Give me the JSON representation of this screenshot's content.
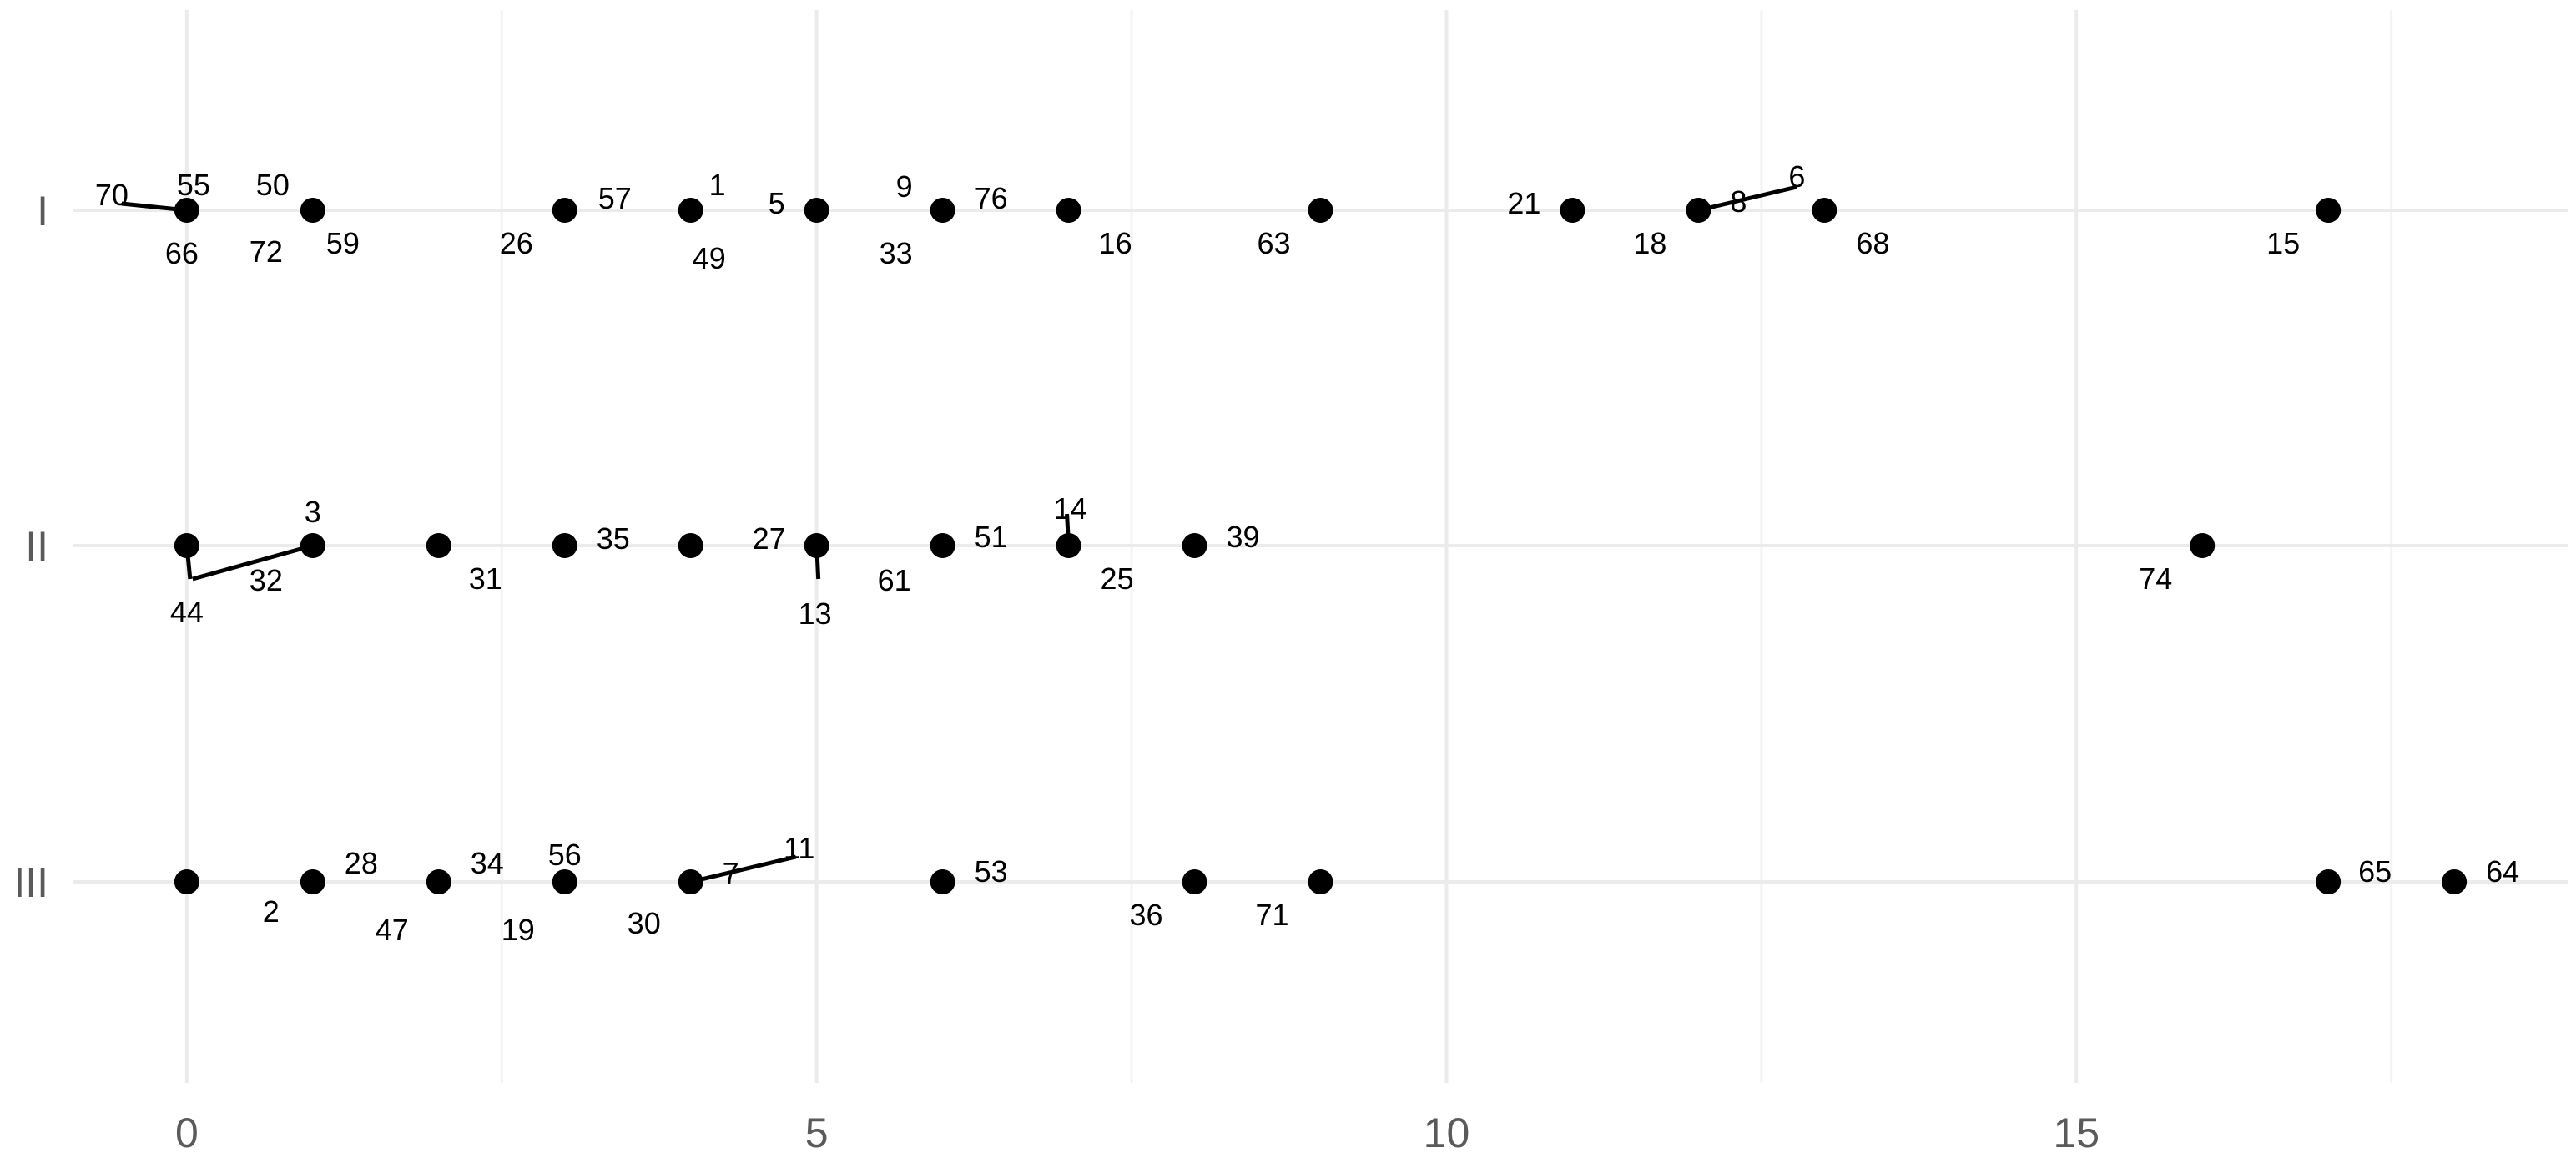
{
  "chart_data": {
    "type": "scatter",
    "title": "",
    "xlabel": "",
    "ylabel": "",
    "xlim": [
      -0.9,
      18.9
    ],
    "x_ticks": [
      0,
      5,
      10,
      15
    ],
    "x_tick_labels": [
      "0",
      "5",
      "10",
      "15"
    ],
    "categories": [
      "I",
      "II",
      "III"
    ],
    "grid": true,
    "legend": "none",
    "point_color": "#000000",
    "points": [
      {
        "cat": "I",
        "x": 0,
        "labels": [
          "70",
          "55",
          "66"
        ]
      },
      {
        "cat": "I",
        "x": 1,
        "labels": [
          "50",
          "72",
          "59"
        ]
      },
      {
        "cat": "I",
        "x": 3,
        "labels": [
          "57",
          "26"
        ]
      },
      {
        "cat": "I",
        "x": 4,
        "labels": [
          "1",
          "49"
        ]
      },
      {
        "cat": "I",
        "x": 5,
        "labels": [
          "5"
        ]
      },
      {
        "cat": "I",
        "x": 6,
        "labels": [
          "9",
          "76",
          "33"
        ]
      },
      {
        "cat": "I",
        "x": 7,
        "labels": [
          "16"
        ]
      },
      {
        "cat": "I",
        "x": 9,
        "labels": [
          "63"
        ]
      },
      {
        "cat": "I",
        "x": 11,
        "labels": [
          "21"
        ]
      },
      {
        "cat": "I",
        "x": 12,
        "labels": [
          "8",
          "6",
          "18"
        ]
      },
      {
        "cat": "I",
        "x": 13,
        "labels": [
          "68"
        ]
      },
      {
        "cat": "I",
        "x": 17,
        "labels": [
          "15"
        ]
      },
      {
        "cat": "II",
        "x": 0,
        "labels": [
          "44"
        ]
      },
      {
        "cat": "II",
        "x": 1,
        "labels": [
          "32",
          "3"
        ]
      },
      {
        "cat": "II",
        "x": 2,
        "labels": [
          "31"
        ]
      },
      {
        "cat": "II",
        "x": 3,
        "labels": [
          "35"
        ]
      },
      {
        "cat": "II",
        "x": 4,
        "labels": [
          "27"
        ]
      },
      {
        "cat": "II",
        "x": 5,
        "labels": [
          "13"
        ]
      },
      {
        "cat": "II",
        "x": 6,
        "labels": [
          "61",
          "51"
        ]
      },
      {
        "cat": "II",
        "x": 7,
        "labels": [
          "14",
          "25"
        ]
      },
      {
        "cat": "II",
        "x": 8,
        "labels": [
          "39"
        ]
      },
      {
        "cat": "II",
        "x": 16,
        "labels": [
          "74"
        ]
      },
      {
        "cat": "III",
        "x": 0,
        "labels": []
      },
      {
        "cat": "III",
        "x": 1,
        "labels": [
          "28",
          "2"
        ]
      },
      {
        "cat": "III",
        "x": 2,
        "labels": [
          "34",
          "47"
        ]
      },
      {
        "cat": "III",
        "x": 3,
        "labels": [
          "56",
          "19"
        ]
      },
      {
        "cat": "III",
        "x": 4,
        "labels": [
          "7",
          "11",
          "30"
        ]
      },
      {
        "cat": "III",
        "x": 6,
        "labels": [
          "53"
        ]
      },
      {
        "cat": "III",
        "x": 8,
        "labels": [
          "36"
        ]
      },
      {
        "cat": "III",
        "x": 9,
        "labels": [
          "71"
        ]
      },
      {
        "cat": "III",
        "x": 17,
        "labels": [
          "65"
        ]
      },
      {
        "cat": "III",
        "x": 18,
        "labels": [
          "64"
        ]
      }
    ]
  }
}
